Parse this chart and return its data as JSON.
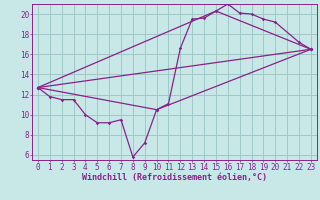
{
  "background_color": "#c8e8e8",
  "grid_color": "#a0c8c8",
  "line_color": "#882288",
  "marker_color": "#882288",
  "xlim": [
    -0.5,
    23.5
  ],
  "ylim": [
    5.5,
    21.0
  ],
  "xticks": [
    0,
    1,
    2,
    3,
    4,
    5,
    6,
    7,
    8,
    9,
    10,
    11,
    12,
    13,
    14,
    15,
    16,
    17,
    18,
    19,
    20,
    21,
    22,
    23
  ],
  "yticks": [
    6,
    8,
    10,
    12,
    14,
    16,
    18,
    20
  ],
  "xlabel": "Windchill (Refroidissement éolien,°C)",
  "series": [
    {
      "x": [
        0,
        1,
        2,
        3,
        4,
        5,
        6,
        7,
        8,
        9,
        10,
        11,
        12,
        13,
        14,
        15,
        16,
        17,
        18,
        19,
        20,
        22,
        23
      ],
      "y": [
        12.7,
        11.8,
        11.5,
        11.5,
        10.0,
        9.2,
        9.2,
        9.5,
        5.8,
        7.2,
        10.5,
        11.1,
        16.6,
        19.5,
        19.6,
        20.3,
        21.0,
        20.1,
        20.0,
        19.5,
        19.2,
        17.2,
        16.5
      ]
    },
    {
      "x": [
        0,
        23
      ],
      "y": [
        12.7,
        16.5
      ]
    },
    {
      "x": [
        0,
        15,
        23
      ],
      "y": [
        12.7,
        20.3,
        16.5
      ]
    },
    {
      "x": [
        0,
        10,
        23
      ],
      "y": [
        12.7,
        10.5,
        16.5
      ]
    }
  ],
  "tick_fontsize": 5.5,
  "xlabel_fontsize": 6.0
}
